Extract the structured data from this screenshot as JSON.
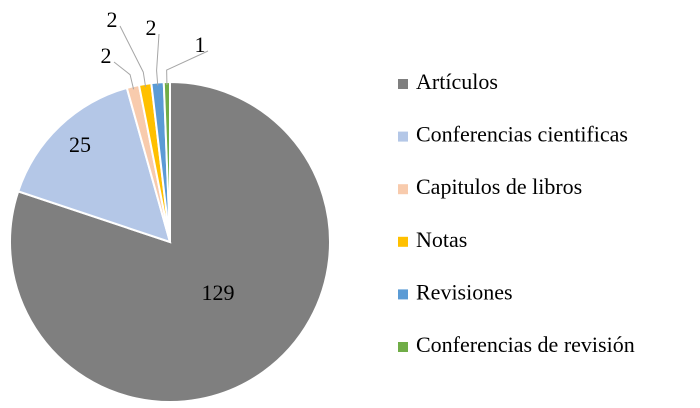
{
  "chart_data": {
    "type": "pie",
    "categories": [
      "Artículos",
      "Conferencias cientificas",
      "Capitulos de libros",
      "Notas",
      "Revisiones",
      "Conferencias de revisión"
    ],
    "values": [
      129,
      25,
      2,
      2,
      2,
      1
    ],
    "colors": [
      "#7f7f7f",
      "#b4c7e7",
      "#f8cbad",
      "#ffc000",
      "#5b9bd5",
      "#70ad47"
    ],
    "legend": "right"
  }
}
